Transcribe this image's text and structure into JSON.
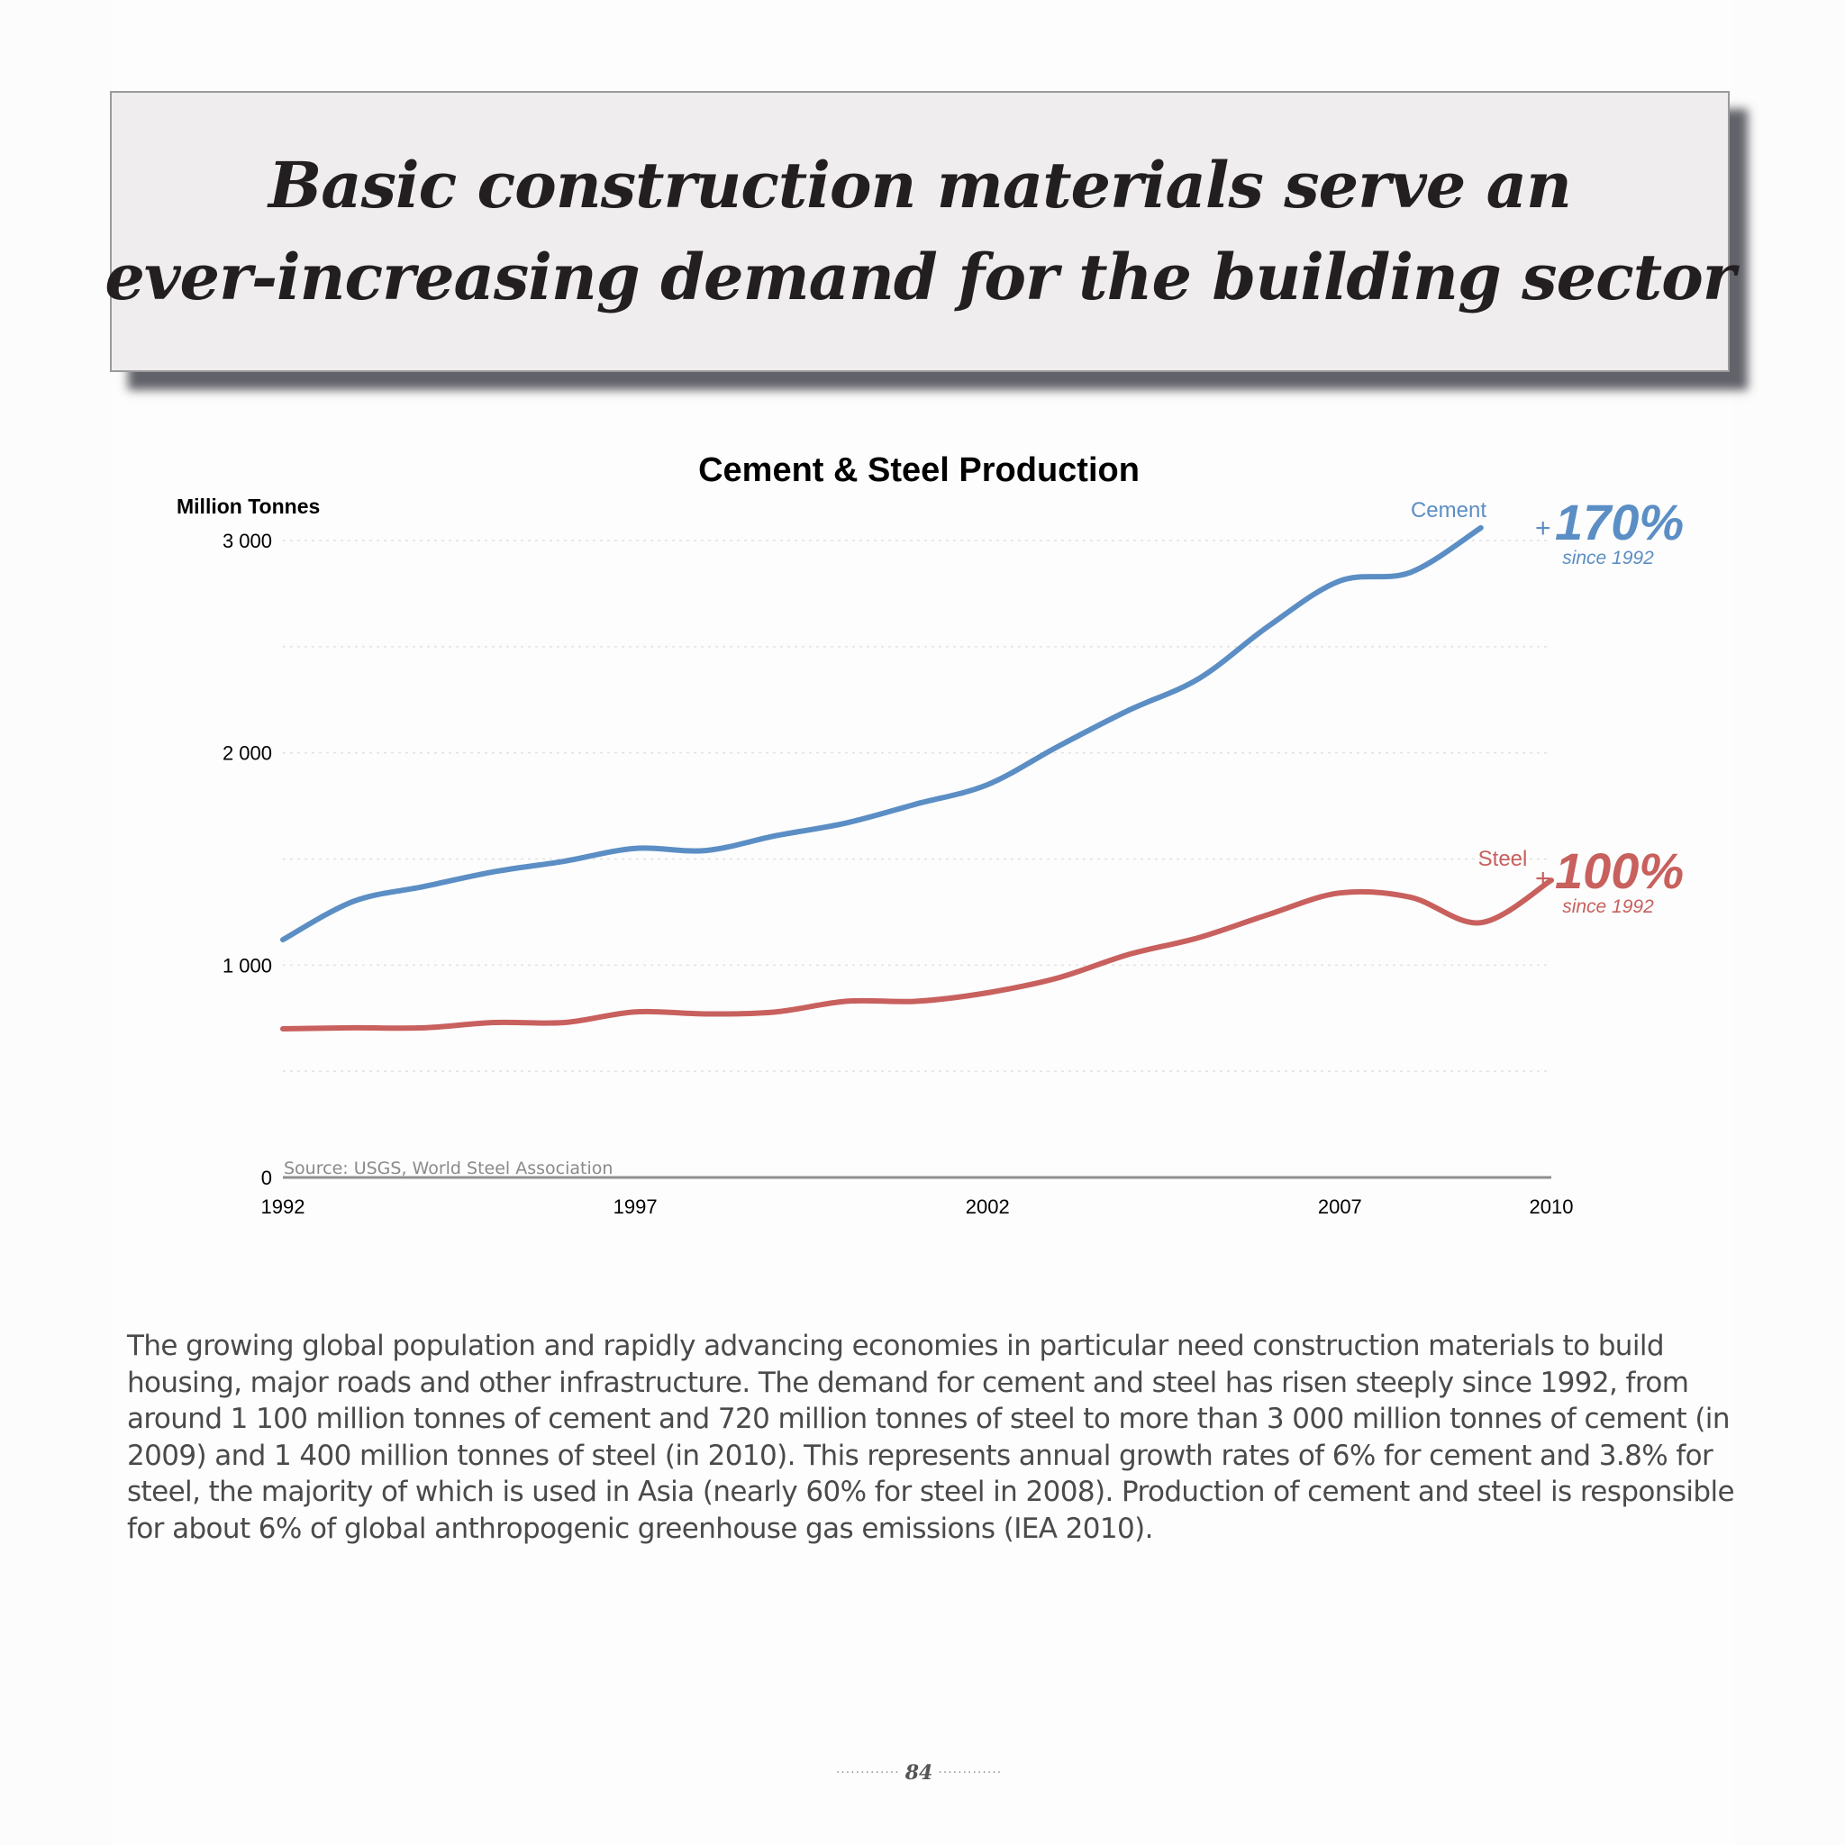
{
  "headline": {
    "line1": "Basic construction materials serve an",
    "line2": "ever-increasing demand for the building sector"
  },
  "chart_data": {
    "type": "line",
    "title": "Cement & Steel Production",
    "ylabel": "Million Tonnes",
    "xlabel": "",
    "xlim": [
      1992,
      2010
    ],
    "ylim": [
      0,
      3000
    ],
    "x_ticks": [
      "1992",
      "1997",
      "2002",
      "2007",
      "2010"
    ],
    "y_ticks": [
      "0",
      "1 000",
      "2 000",
      "3 000"
    ],
    "grid": true,
    "source": "Source: USGS, World Steel Association",
    "series": [
      {
        "name": "Cement",
        "color": "#5b8ec4",
        "x": [
          1992,
          1993,
          1994,
          1995,
          1996,
          1997,
          1998,
          1999,
          2000,
          2001,
          2002,
          2003,
          2004,
          2005,
          2006,
          2007,
          2008,
          2009
        ],
        "values": [
          1120,
          1300,
          1370,
          1440,
          1490,
          1550,
          1540,
          1610,
          1670,
          1760,
          1850,
          2030,
          2200,
          2350,
          2600,
          2810,
          2850,
          3060
        ],
        "growth": "170%",
        "growth_sign": "+",
        "growth_note": "since 1992"
      },
      {
        "name": "Steel",
        "color": "#c8605e",
        "x": [
          1992,
          1993,
          1994,
          1995,
          1996,
          1997,
          1998,
          1999,
          2000,
          2001,
          2002,
          2003,
          2004,
          2005,
          2006,
          2007,
          2008,
          2009,
          2010
        ],
        "values": [
          700,
          705,
          705,
          730,
          730,
          780,
          770,
          780,
          830,
          830,
          870,
          940,
          1050,
          1130,
          1240,
          1340,
          1320,
          1200,
          1400
        ],
        "growth": "100%",
        "growth_sign": "+",
        "growth_note": "since 1992"
      }
    ]
  },
  "body_text": "The growing global population and rapidly advancing economies in particular need construction materials to build housing, major roads and other infrastructure. The demand for cement and steel has risen steeply since 1992, from around 1 100 million tonnes of cement and 720 million tonnes of steel to more than 3 000 million tonnes of cement (in 2009) and 1 400 million tonnes of steel (in 2010). This represents annual growth rates of 6% for cement and 3.8% for steel, the majority of which is used in Asia (nearly 60% for steel in 2008). Production of cement and steel is responsible for about 6% of global anthropogenic greenhouse gas emissions (IEA 2010).",
  "page_number": "84",
  "colors": {
    "cement": "#5b8ec4",
    "steel": "#c8605e",
    "headline_bg": "#efeded"
  }
}
